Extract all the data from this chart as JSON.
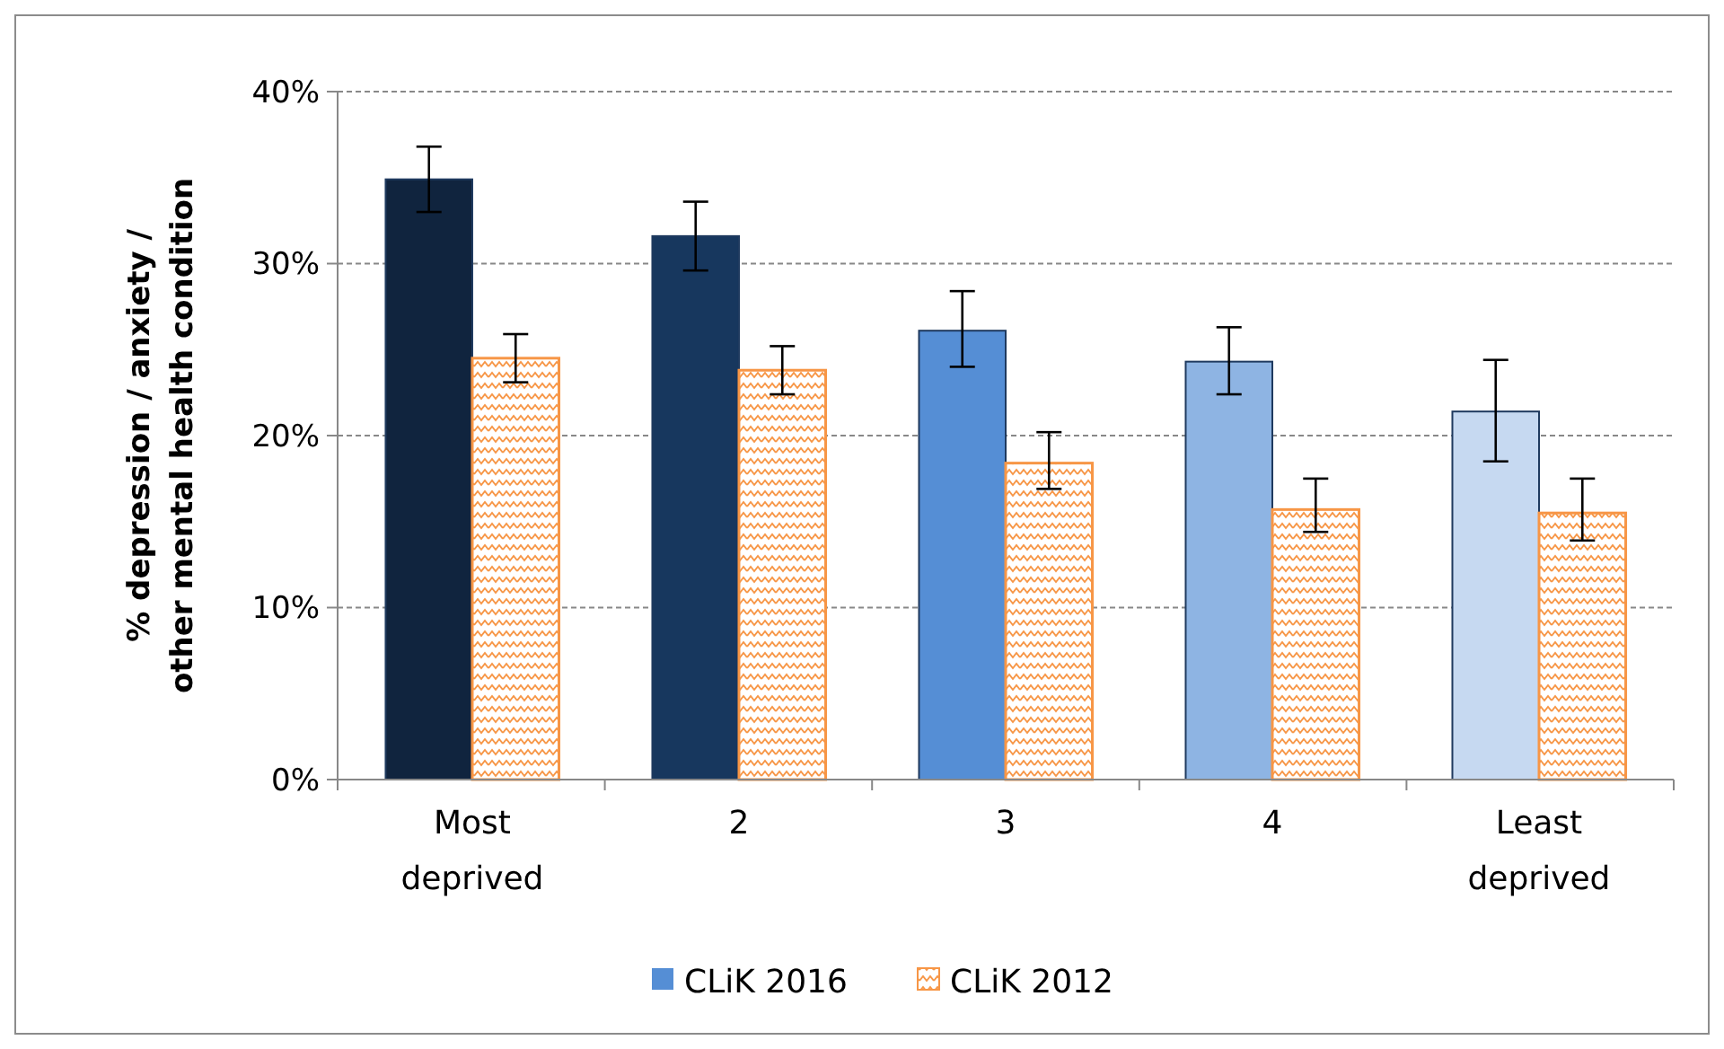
{
  "chart_data": {
    "type": "bar",
    "ylabel": "% depression / anxiety / other mental health condition",
    "categories": [
      "Most deprived",
      "2",
      "3",
      "4",
      "Least deprived"
    ],
    "series": [
      {
        "name": "CLiK 2016",
        "color": "#558ed5",
        "colors": [
          "#10243e",
          "#17375e",
          "#558ed5",
          "#8eb4e3",
          "#c6d9f1"
        ],
        "values": [
          34.9,
          31.6,
          26.1,
          24.3,
          21.4
        ],
        "errors": [
          [
            33.0,
            36.8
          ],
          [
            29.6,
            33.6
          ],
          [
            24.0,
            28.4
          ],
          [
            22.4,
            26.3
          ],
          [
            18.5,
            24.4
          ]
        ]
      },
      {
        "name": "CLiK 2012",
        "color": "#f79646",
        "values": [
          24.5,
          23.8,
          18.4,
          15.7,
          15.5
        ],
        "errors": [
          [
            23.1,
            25.9
          ],
          [
            22.4,
            25.2
          ],
          [
            16.9,
            20.2
          ],
          [
            14.4,
            17.5
          ],
          [
            13.9,
            17.5
          ]
        ]
      }
    ],
    "ylim": [
      0,
      40
    ],
    "yticks": [
      {
        "value": 0,
        "label": "0%"
      },
      {
        "value": 10,
        "label": "10%"
      },
      {
        "value": 20,
        "label": "20%"
      },
      {
        "value": 30,
        "label": "30%"
      },
      {
        "value": 40,
        "label": "40%"
      }
    ],
    "grid": "y",
    "legend": "bottom"
  }
}
